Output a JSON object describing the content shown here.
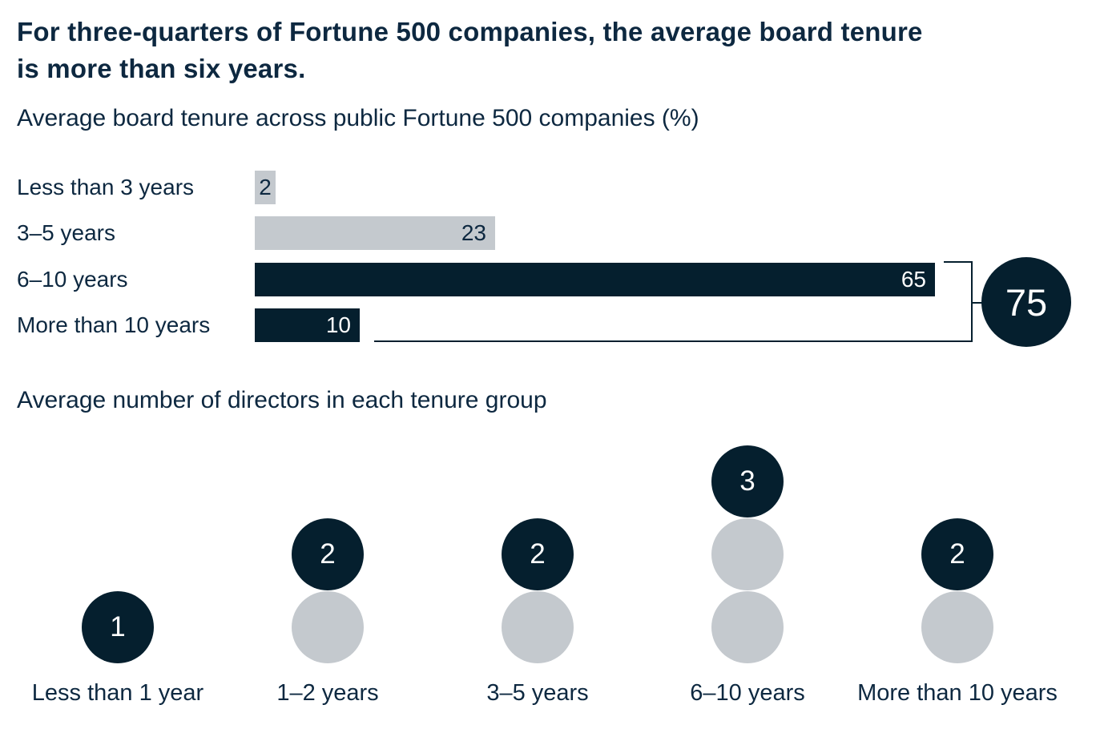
{
  "header": {
    "title": "For three-quarters of Fortune 500 companies, the average board tenure\nis more than six years."
  },
  "colors": {
    "navy": "#051f2e",
    "gray": "#c4c9ce",
    "white": "#ffffff",
    "text": "#0d2840"
  },
  "chart_data": [
    {
      "type": "bar",
      "orientation": "horizontal",
      "title": "Average board tenure across public Fortune 500 companies (%)",
      "unit": "percent",
      "categories": [
        "Less than 3 years",
        "3–5 years",
        "6–10 years",
        "More than 10 years"
      ],
      "values": [
        2,
        23,
        65,
        10
      ],
      "bar_colors": [
        "gray",
        "gray",
        "navy",
        "navy"
      ],
      "value_label_colors": [
        "text",
        "text",
        "white",
        "white"
      ],
      "xlim": [
        0,
        65
      ],
      "grid": false,
      "legend": false,
      "annotation": {
        "total_label": "75",
        "grouped_categories": [
          "6–10 years",
          "More than 10 years"
        ]
      }
    },
    {
      "type": "dot-stack",
      "title": "Average number of directors in each tenure group",
      "categories": [
        "Less than 1 year",
        "1–2 years",
        "3–5 years",
        "6–10 years",
        "More than 10 years"
      ],
      "values": [
        1,
        2,
        2,
        3,
        2
      ],
      "dot_colors": {
        "top": "navy",
        "rest": "gray"
      }
    }
  ]
}
